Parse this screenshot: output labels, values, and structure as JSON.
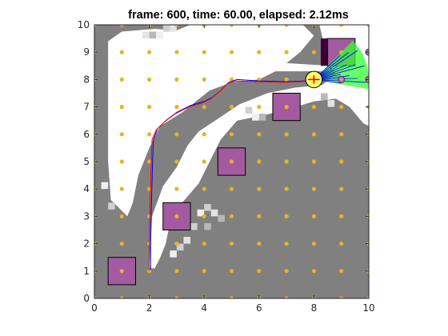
{
  "chart_data": {
    "type": "scatter",
    "title": "frame: 600, time: 60.00, elapsed: 2.12ms",
    "xlabel": "",
    "ylabel": "",
    "xlim": [
      0,
      10
    ],
    "ylim": [
      0,
      10
    ],
    "xticks": [
      "0",
      "2",
      "4",
      "6",
      "8",
      "10"
    ],
    "yticks": [
      "0",
      "1",
      "2",
      "3",
      "4",
      "5",
      "6",
      "7",
      "8",
      "9",
      "10"
    ],
    "grid": false,
    "grid_points_spacing": 1,
    "grid_points_color": "#EDB120",
    "occupancy": {
      "cell_size": 0.25,
      "occupied_color": "#808080",
      "free_color": "#FFFFFF",
      "free_regions": [
        {
          "polygon": [
            [
              0.5,
              9.4
            ],
            [
              1.0,
              9.75
            ],
            [
              2.2,
              9.85
            ],
            [
              3.0,
              9.8
            ],
            [
              3.5,
              10
            ],
            [
              7.6,
              10
            ],
            [
              8.0,
              9.6
            ],
            [
              7.5,
              9.0
            ],
            [
              7.0,
              8.6
            ],
            [
              8.6,
              8.5
            ],
            [
              8.8,
              8.2
            ],
            [
              8.3,
              7.8
            ],
            [
              7.3,
              7.7
            ],
            [
              6.3,
              7.5
            ],
            [
              5.3,
              7.1
            ],
            [
              4.4,
              6.5
            ],
            [
              3.8,
              6.1
            ],
            [
              3.4,
              5.6
            ],
            [
              3.0,
              4.8
            ],
            [
              2.5,
              4.1
            ],
            [
              2.1,
              3.0
            ],
            [
              2.0,
              1.1
            ],
            [
              2.2,
              1.1
            ],
            [
              2.4,
              1.5
            ],
            [
              2.6,
              2.0
            ],
            [
              2.8,
              3.0
            ],
            [
              3.2,
              3.5
            ],
            [
              3.8,
              4.2
            ],
            [
              4.2,
              5.0
            ],
            [
              4.6,
              5.8
            ],
            [
              5.2,
              6.5
            ],
            [
              6.2,
              6.7
            ],
            [
              7.0,
              6.9
            ],
            [
              8.0,
              7.2
            ],
            [
              8.8,
              7.3
            ],
            [
              9.3,
              7.0
            ],
            [
              9.8,
              6.4
            ],
            [
              10,
              6.3
            ],
            [
              10,
              10
            ],
            [
              8.2,
              10
            ],
            [
              8.6,
              8.3
            ],
            [
              7.6,
              8.3
            ],
            [
              6.6,
              8.3
            ],
            [
              6.0,
              8.0
            ],
            [
              5.0,
              7.9
            ],
            [
              4.2,
              7.6
            ],
            [
              3.2,
              6.8
            ],
            [
              2.4,
              6.3
            ],
            [
              2.0,
              5.5
            ],
            [
              1.6,
              4.5
            ],
            [
              1.4,
              3.5
            ],
            [
              1.2,
              3.0
            ],
            [
              0.6,
              3.6
            ],
            [
              0.5,
              5.0
            ],
            [
              0.5,
              9.4
            ]
          ]
        }
      ],
      "light_cells": [
        [
          4.0,
          3.2
        ],
        [
          4.25,
          3.0
        ],
        [
          4.5,
          2.8
        ],
        [
          3.75,
          3.0
        ],
        [
          3.5,
          2.5
        ],
        [
          3.25,
          2.0
        ],
        [
          4.0,
          2.5
        ],
        [
          2.75,
          1.5
        ],
        [
          3.0,
          1.75
        ],
        [
          1.75,
          9.5
        ],
        [
          2.0,
          9.5
        ],
        [
          2.25,
          9.5
        ],
        [
          2.5,
          9.75
        ],
        [
          2.75,
          9.75
        ],
        [
          6.0,
          6.5
        ],
        [
          5.75,
          6.5
        ],
        [
          5.5,
          6.75
        ],
        [
          8.5,
          7.0
        ],
        [
          8.25,
          7.25
        ],
        [
          0.25,
          4.0
        ],
        [
          0.5,
          3.25
        ]
      ]
    },
    "obstacles": [
      {
        "x": 1.0,
        "y": 1.0,
        "size": 1,
        "color": "#A45AA0"
      },
      {
        "x": 3.0,
        "y": 3.0,
        "size": 1,
        "color": "#A45AA0"
      },
      {
        "x": 5.0,
        "y": 5.0,
        "size": 1,
        "color": "#A45AA0"
      },
      {
        "x": 7.0,
        "y": 7.0,
        "size": 1,
        "color": "#A45AA0"
      },
      {
        "x": 9.0,
        "y": 9.0,
        "size": 1,
        "color": "#A45AA0"
      }
    ],
    "obstacle_shadows": [
      {
        "x": 2.5,
        "y": 2.5,
        "w": 1.0,
        "h": 1.0,
        "color": "#3D0035"
      },
      {
        "x": 6.5,
        "y": 6.5,
        "w": 1.0,
        "h": 1.0,
        "color": "#3D0035"
      },
      {
        "x": 8.25,
        "y": 8.5,
        "w": 0.75,
        "h": 1.0,
        "color": "#3D0035"
      }
    ],
    "path_series": [
      {
        "color": "#0000FF",
        "points": [
          [
            2.05,
            1.05
          ],
          [
            2.05,
            2.0
          ],
          [
            2.08,
            3.5
          ],
          [
            2.12,
            5.0
          ],
          [
            2.15,
            5.8
          ],
          [
            2.3,
            6.2
          ],
          [
            2.6,
            6.5
          ],
          [
            3.0,
            6.8
          ],
          [
            3.5,
            7.05
          ],
          [
            4.0,
            7.2
          ],
          [
            4.3,
            7.35
          ],
          [
            4.6,
            7.6
          ],
          [
            4.9,
            7.9
          ],
          [
            5.2,
            8.0
          ],
          [
            6.0,
            7.95
          ],
          [
            7.0,
            7.92
          ],
          [
            7.7,
            7.95
          ],
          [
            8.0,
            8.0
          ]
        ]
      },
      {
        "color": "#FF0000",
        "points": [
          [
            2.0,
            1.0
          ],
          [
            2.0,
            2.0
          ],
          [
            2.03,
            3.5
          ],
          [
            2.07,
            5.0
          ],
          [
            2.1,
            5.8
          ],
          [
            2.25,
            6.15
          ],
          [
            2.55,
            6.45
          ],
          [
            2.95,
            6.75
          ],
          [
            3.45,
            7.0
          ],
          [
            3.95,
            7.15
          ],
          [
            4.25,
            7.3
          ],
          [
            4.55,
            7.55
          ],
          [
            4.85,
            7.85
          ],
          [
            5.15,
            7.95
          ],
          [
            6.0,
            7.92
          ],
          [
            7.0,
            7.9
          ],
          [
            7.7,
            7.93
          ],
          [
            8.0,
            8.0
          ]
        ]
      }
    ],
    "robot": {
      "x": 8.0,
      "y": 8.0,
      "radius": 0.3,
      "color": "#FFFF66",
      "heading_deg": 0
    },
    "sensor_fan": {
      "origin": [
        8.0,
        8.0
      ],
      "range": 2.0,
      "from_deg": -10,
      "to_deg": 45,
      "color": "#33FF33"
    },
    "sensor_rays_count": 12,
    "targets": [
      [
        9.0,
        8.0
      ],
      [
        10.0,
        8.0
      ],
      [
        10.0,
        9.0
      ]
    ],
    "target_color": "#B469CF"
  }
}
